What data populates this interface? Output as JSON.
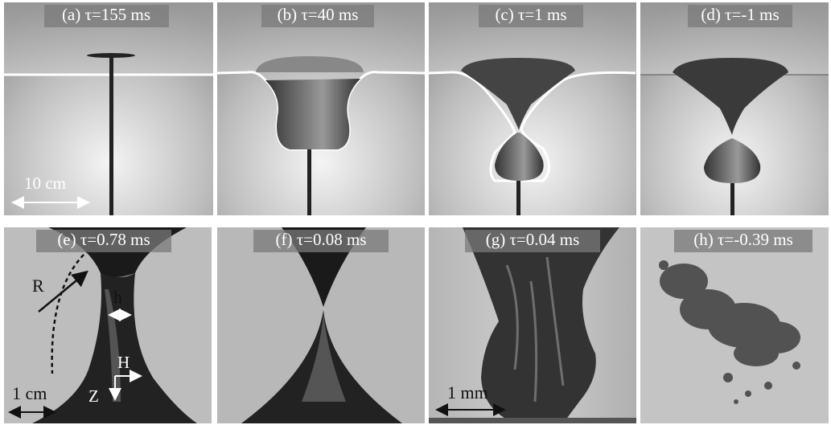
{
  "panels": [
    {
      "label": "(a) τ=155 ms"
    },
    {
      "label": "(b) τ=40 ms"
    },
    {
      "label": "(c) τ=1 ms"
    },
    {
      "label": "(d) τ=-1 ms"
    },
    {
      "label": "(e) τ=0.78 ms"
    },
    {
      "label": "(f) τ=0.08 ms"
    },
    {
      "label": "(g) τ=0.04 ms"
    },
    {
      "label": "(h) τ=-0.39 ms"
    }
  ],
  "annotations": {
    "scale_a": "10 cm",
    "radius": "R",
    "neck_width": "h",
    "horizontal_axis": "H",
    "vertical_axis": "Z",
    "scale_e": "1 cm",
    "scale_g": "1 mm"
  }
}
